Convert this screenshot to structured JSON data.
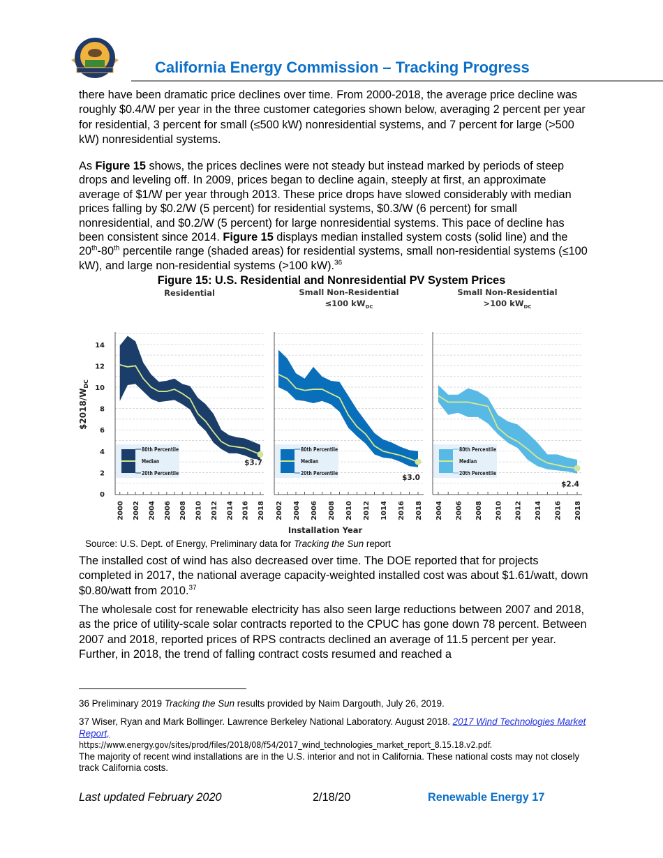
{
  "header": {
    "title": "California Energy Commission – Tracking Progress",
    "logo_text": "STATE OF CALIFORNIA ENERGY COMMISSION"
  },
  "paragraphs": {
    "p1": "there have been dramatic price declines over time. From 2000-2018, the average price decline was roughly $0.4/W per year in the three customer categories shown below, averaging 2 percent per year for residential, 3 percent for small (≤500 kW) nonresidential systems, and 7 percent for large (>500 kW) nonresidential systems.",
    "p2": {
      "s1": "As ",
      "b1": "Figure 15",
      "s2": " shows, the prices declines were not steady but instead marked by periods of steep drops and leveling off. In 2009, prices began to decline again, steeply at first, an approximate average of $1/W per year through 2013. These price drops have slowed considerably with median prices falling by $0.2/W (5 percent) for residential systems, $0.3/W (6 percent) for small nonresidential, and $0.2/W (5 percent) for large nonresidential systems. This pace of decline has been consistent since 2014. ",
      "b2": "Figure 15",
      "s3": " displays median installed system costs (solid line) and the 20",
      "sup1": "th",
      "s4": "-80",
      "sup2": "th",
      "s5": " percentile range (shaded areas) for residential systems, small non-residential systems (≤100 kW), and large non-residential systems (>100 kW).",
      "ref": "36"
    },
    "p3": {
      "s1": "The installed cost of wind has also decreased over time. The DOE reported that for projects completed in 2017, the national average capacity-weighted installed cost was about $1.61/watt, down $0.80/watt from 2010.",
      "ref": "37"
    },
    "p4": "The wholesale cost for renewable electricity has also seen large reductions between 2007 and 2018, as the price of utility-scale solar contracts reported to the CPUC has gone down 78 percent. Between 2007 and 2018, reported prices of RPS contracts declined an average of 11.5 percent per year. Further, in 2018, the trend of falling contract costs resumed and reached a"
  },
  "figure": {
    "title": "Figure 15: U.S. Residential and Nonresidential PV System Prices",
    "source_prefix": "Source: U.S. Dept. of Energy, Preliminary data for ",
    "source_italic": "Tracking the Sun",
    "source_suffix": " report"
  },
  "chart_data": {
    "type": "area",
    "ylabel": "$2018/W",
    "ylabel_sub": "DC",
    "xlabel": "Installation Year",
    "ylim": [
      0,
      15
    ],
    "yticks": [
      "0",
      "2",
      "4",
      "6",
      "8",
      "10",
      "12",
      "14"
    ],
    "grid": "horizontal dashed",
    "colors": {
      "median": "#d6ea8c",
      "legend_bg": "#e4f1fa"
    },
    "legend": {
      "p80": "80th Percentile",
      "median": "Median",
      "p20": "20th Percentile",
      "placement": "bottom-left"
    },
    "panels": [
      {
        "title": "Residential",
        "subtitle": "",
        "color": "#1b3d69",
        "x": [
          2000,
          2001,
          2002,
          2003,
          2004,
          2005,
          2006,
          2007,
          2008,
          2009,
          2010,
          2011,
          2012,
          2013,
          2014,
          2015,
          2016,
          2017,
          2018
        ],
        "xtick_labels": [
          "2000",
          "2002",
          "2004",
          "2006",
          "2008",
          "2010",
          "2012",
          "2014",
          "2016",
          "2018"
        ],
        "p80": [
          13.9,
          14.8,
          14.3,
          12.3,
          11.2,
          10.5,
          10.6,
          10.8,
          10.3,
          10.1,
          9.0,
          8.4,
          7.5,
          6.0,
          5.5,
          5.3,
          5.2,
          4.9,
          4.6
        ],
        "median": [
          12.1,
          11.9,
          12.0,
          10.8,
          10.0,
          9.6,
          9.6,
          9.8,
          9.4,
          8.9,
          7.5,
          6.8,
          5.8,
          4.9,
          4.5,
          4.4,
          4.3,
          4.0,
          3.7
        ],
        "p20": [
          8.7,
          10.2,
          10.3,
          9.6,
          8.9,
          8.6,
          8.7,
          8.8,
          8.4,
          7.9,
          6.6,
          5.9,
          4.8,
          4.2,
          3.8,
          3.8,
          3.6,
          3.3,
          3.2
        ],
        "end_label": "$3.7"
      },
      {
        "title": "Small Non-Residential",
        "subtitle": "≤100 kW",
        "subtitle_sub": "DC",
        "color": "#0a6fba",
        "x": [
          2002,
          2003,
          2004,
          2005,
          2006,
          2007,
          2008,
          2009,
          2010,
          2011,
          2012,
          2013,
          2014,
          2015,
          2016,
          2017,
          2018
        ],
        "xtick_labels": [
          "2002",
          "2004",
          "2006",
          "2008",
          "2010",
          "2012",
          "1014",
          "2016",
          "2018"
        ],
        "p80": [
          13.5,
          12.7,
          11.3,
          10.8,
          11.9,
          11.0,
          10.6,
          10.5,
          9.2,
          7.9,
          6.8,
          5.7,
          5.1,
          4.8,
          4.4,
          4.1,
          4.0
        ],
        "median": [
          11.2,
          10.8,
          9.9,
          9.7,
          9.8,
          9.8,
          9.4,
          9.0,
          7.4,
          6.3,
          5.6,
          4.5,
          4.0,
          3.8,
          3.6,
          3.3,
          3.0
        ],
        "p20": [
          10.0,
          9.6,
          8.8,
          8.7,
          8.5,
          8.7,
          8.4,
          7.7,
          6.2,
          5.4,
          4.7,
          3.7,
          3.4,
          3.3,
          3.0,
          2.6,
          2.5
        ],
        "end_label": "$3.0"
      },
      {
        "title": "Small Non-Residential",
        "subtitle": ">100 kW",
        "subtitle_sub": "DC",
        "color": "#59b9e5",
        "x": [
          2004,
          2005,
          2006,
          2007,
          2008,
          2009,
          2010,
          2011,
          2012,
          2013,
          2014,
          2015,
          2016,
          2017,
          2018
        ],
        "xtick_labels": [
          "2004",
          "2006",
          "2008",
          "2010",
          "2012",
          "2014",
          "2016",
          "2018"
        ],
        "p80": [
          10.2,
          9.3,
          9.3,
          9.9,
          9.6,
          9.0,
          7.4,
          6.8,
          6.5,
          5.7,
          4.8,
          3.7,
          3.7,
          3.4,
          3.2
        ],
        "median": [
          9.2,
          8.6,
          8.6,
          8.6,
          8.4,
          8.2,
          6.2,
          5.4,
          4.9,
          4.2,
          3.4,
          2.9,
          2.7,
          2.5,
          2.4
        ],
        "p20": [
          8.6,
          7.4,
          7.6,
          7.2,
          7.2,
          6.6,
          5.6,
          4.8,
          4.3,
          3.2,
          2.6,
          2.3,
          2.2,
          2.1,
          1.9
        ],
        "end_label": "$2.4"
      }
    ]
  },
  "footnotes": {
    "f36_pre": "36 Preliminary 2019 ",
    "f36_italic": "Tracking the Sun",
    "f36_post": " results provided by Naim Dargouth, July 26, 2019.",
    "f37_pre": "37 Wiser, Ryan and Mark Bollinger. Lawrence Berkeley National Laboratory. August 2018. ",
    "f37_link": "2017 Wind Technologies Market Report,",
    "f37_url": "https://www.energy.gov/sites/prod/files/2018/08/f54/2017_wind_technologies_market_report_8.15.18.v2.pdf.",
    "f37_post": "The majority of recent wind installations are in the U.S. interior and not in California. These national costs may not closely track California costs."
  },
  "footer": {
    "left": "Last updated February 2020",
    "center": "2/18/20",
    "right": "Renewable Energy 17",
    "right_color": "#0b6fc8"
  }
}
